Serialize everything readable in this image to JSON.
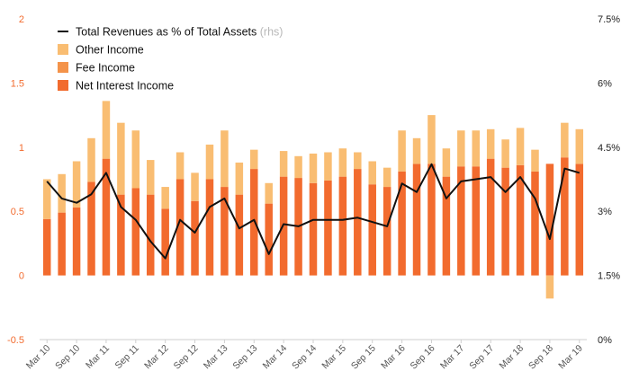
{
  "chart_data": {
    "type": "bar",
    "title": "",
    "stacked": true,
    "left_axis": {
      "ylim": [
        -0.5,
        2
      ],
      "ticks": [
        -0.5,
        0,
        0.5,
        1,
        1.5,
        2
      ],
      "tick_labels": [
        "-0.5",
        "0",
        "0.5",
        "1",
        "1.5",
        "2"
      ]
    },
    "right_axis": {
      "ylim": [
        0,
        7.5
      ],
      "ticks": [
        0,
        1.5,
        3,
        4.5,
        6,
        7.5
      ],
      "tick_labels": [
        "0%",
        "1.5%",
        "3%",
        "4.5%",
        "6%",
        "7.5%"
      ]
    },
    "categories": [
      "Mar 10",
      "Jun 10",
      "Sep 10",
      "Dec 10",
      "Mar 11",
      "Jun 11",
      "Sep 11",
      "Dec 11",
      "Mar 12",
      "Jun 12",
      "Sep 12",
      "Dec 12",
      "Mar 13",
      "Jun 13",
      "Sep 13",
      "Dec 13",
      "Mar 14",
      "Jun 14",
      "Sep 14",
      "Dec 14",
      "Mar 15",
      "Jun 15",
      "Sep 15",
      "Dec 15",
      "Mar 16",
      "Jun 16",
      "Sep 16",
      "Dec 16",
      "Mar 17",
      "Jun 17",
      "Sep 17",
      "Dec 17",
      "Mar 18",
      "Jun 18",
      "Sep 18",
      "Dec 18",
      "Mar 19"
    ],
    "x_tick_labels": [
      "Mar 10",
      "Sep 10",
      "Mar 11",
      "Sep 11",
      "Mar 12",
      "Sep 12",
      "Mar 13",
      "Sep 13",
      "Mar 14",
      "Sep 14",
      "Mar 15",
      "Sep 15",
      "Mar 16",
      "Sep 16",
      "Mar 17",
      "Sep 17",
      "Mar 18",
      "Sep 18",
      "Mar 19"
    ],
    "series": [
      {
        "name": "Net Interest Income",
        "color": "#f26b2e",
        "axis": "left",
        "values": [
          0.44,
          0.49,
          0.53,
          0.73,
          0.91,
          0.63,
          0.68,
          0.63,
          0.52,
          0.75,
          0.58,
          0.75,
          0.69,
          0.63,
          0.83,
          0.56,
          0.77,
          0.76,
          0.72,
          0.74,
          0.77,
          0.83,
          0.71,
          0.69,
          0.81,
          0.87,
          0.87,
          0.77,
          0.85,
          0.85,
          0.91,
          0.84,
          0.86,
          0.81,
          0.87,
          0.92,
          0.87
        ]
      },
      {
        "name": "Fee Income",
        "color": "#f4934a",
        "axis": "left",
        "values": [
          0,
          0,
          0,
          0,
          0,
          0,
          0,
          0,
          0,
          0,
          0,
          0,
          0,
          0,
          0,
          0,
          0,
          0,
          0,
          0,
          0,
          0,
          0,
          0,
          0,
          0,
          0,
          0,
          0,
          0,
          0,
          0,
          0,
          0,
          0,
          0,
          0
        ]
      },
      {
        "name": "Other Income",
        "color": "#f9bd72",
        "axis": "left",
        "values": [
          0.31,
          0.3,
          0.36,
          0.34,
          0.45,
          0.56,
          0.45,
          0.27,
          0.17,
          0.21,
          0.22,
          0.27,
          0.44,
          0.25,
          0.15,
          0.16,
          0.2,
          0.17,
          0.23,
          0.22,
          0.22,
          0.13,
          0.18,
          0.15,
          0.32,
          0.2,
          0.38,
          0.22,
          0.28,
          0.28,
          0.23,
          0.22,
          0.29,
          0.17,
          -0.18,
          0.27,
          0.27
        ]
      },
      {
        "name": "Total Revenues as % of Total Assets",
        "legend_suffix": "(rhs)",
        "color": "#111111",
        "axis": "right",
        "type": "line",
        "values": [
          3.7,
          3.3,
          3.2,
          3.4,
          3.9,
          3.1,
          2.8,
          2.3,
          1.9,
          2.8,
          2.5,
          3.1,
          3.3,
          2.6,
          2.8,
          2.0,
          2.7,
          2.65,
          2.8,
          2.8,
          2.8,
          2.85,
          2.75,
          2.65,
          3.65,
          3.45,
          4.1,
          3.3,
          3.7,
          3.75,
          3.8,
          3.45,
          3.8,
          3.3,
          2.35,
          4.0,
          3.9
        ]
      }
    ],
    "legend": {
      "position": "top-left",
      "items": [
        {
          "label": "Total Revenues as % of Total Assets",
          "suffix": "(rhs)",
          "kind": "line",
          "color": "#111111"
        },
        {
          "label": "Other Income",
          "kind": "box",
          "color": "#f9bd72"
        },
        {
          "label": "Fee Income",
          "kind": "box",
          "color": "#f4934a"
        },
        {
          "label": "Net Interest Income",
          "kind": "box",
          "color": "#f26b2e"
        }
      ]
    }
  }
}
